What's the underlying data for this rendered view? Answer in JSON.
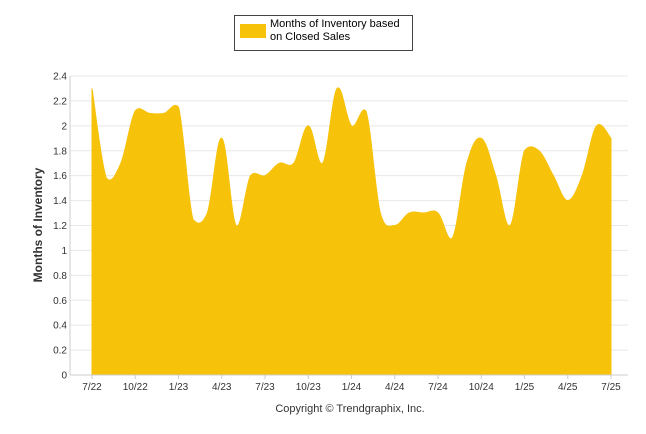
{
  "chart_data": {
    "type": "area",
    "title": "",
    "xlabel": "",
    "ylabel": "Months of Inventory",
    "ylim": [
      0,
      2.4
    ],
    "yticks": [
      "0",
      "0.2",
      "0.4",
      "0.6",
      "0.8",
      "1",
      "1.2",
      "1.4",
      "1.6",
      "1.8",
      "2",
      "2.2",
      "2.4"
    ],
    "grid": "horizontal",
    "legend_position": "top",
    "x": [
      "7/22",
      "8/22",
      "9/22",
      "10/22",
      "11/22",
      "12/22",
      "1/23",
      "2/23",
      "3/23",
      "4/23",
      "5/23",
      "6/23",
      "7/23",
      "8/23",
      "9/23",
      "10/23",
      "11/23",
      "12/23",
      "1/24",
      "2/24",
      "3/24",
      "4/24",
      "5/24",
      "6/24",
      "7/24",
      "8/24",
      "9/24",
      "10/24",
      "11/24",
      "12/24",
      "1/25",
      "2/25",
      "3/25",
      "4/25",
      "5/25",
      "6/25",
      "7/25"
    ],
    "xtick_labels": [
      "7/22",
      "10/22",
      "1/23",
      "4/23",
      "7/23",
      "10/23",
      "1/24",
      "4/24",
      "7/24",
      "10/24",
      "1/25",
      "4/25",
      "7/25"
    ],
    "series": [
      {
        "name": "Months of Inventory based on Closed Sales",
        "color": "#F7C20A",
        "values": [
          2.3,
          1.58,
          1.7,
          2.12,
          2.1,
          2.1,
          2.15,
          1.25,
          1.3,
          1.9,
          1.2,
          1.6,
          1.6,
          1.7,
          1.7,
          2.0,
          1.7,
          2.3,
          2.0,
          2.12,
          1.3,
          1.2,
          1.3,
          1.3,
          1.3,
          1.1,
          1.7,
          1.9,
          1.6,
          1.2,
          1.8,
          1.8,
          1.6,
          1.4,
          1.6,
          2.0,
          1.9
        ]
      }
    ]
  },
  "legend": {
    "line1": "Months of Inventory based",
    "line2": "on Closed Sales",
    "swatch_color": "#F7C20A"
  },
  "footer": {
    "copyright": "Copyright © Trendgraphix, Inc."
  }
}
